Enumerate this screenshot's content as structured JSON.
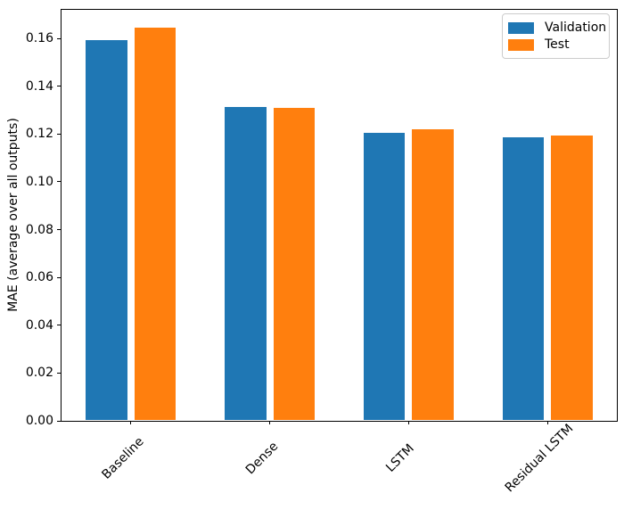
{
  "chart_data": {
    "type": "bar",
    "title": "",
    "xlabel": "",
    "ylabel": "MAE (average over all outputs)",
    "categories": [
      "Baseline",
      "Dense",
      "LSTM",
      "Residual LSTM"
    ],
    "series": [
      {
        "name": "Validation",
        "color": "#1f77b4",
        "values": [
          0.159,
          0.131,
          0.12,
          0.1182
        ]
      },
      {
        "name": "Test",
        "color": "#ff7f0e",
        "values": [
          0.164,
          0.1307,
          0.1215,
          0.1192
        ]
      }
    ],
    "ylim": [
      0,
      0.172
    ],
    "yticks": [
      "0.00",
      "0.02",
      "0.04",
      "0.06",
      "0.08",
      "0.10",
      "0.12",
      "0.14",
      "0.16"
    ],
    "xtick_rotation": 45,
    "legend_position": "upper right",
    "grid": false,
    "background_color": "#ffffff",
    "spine_color": "#000000"
  }
}
